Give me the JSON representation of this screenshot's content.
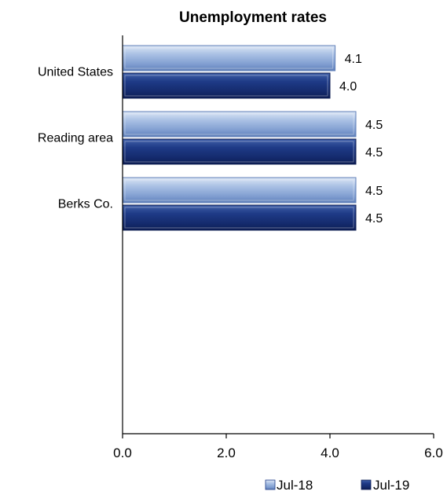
{
  "chart_data": {
    "type": "bar",
    "orientation": "horizontal",
    "title": "Unemployment rates",
    "categories": [
      "United States",
      "Reading area",
      "Berks Co."
    ],
    "series": [
      {
        "name": "Jul-18",
        "values": [
          4.1,
          4.5,
          4.5
        ],
        "value_labels": [
          "4.1",
          "4.5",
          "4.5"
        ],
        "color": "#8eaadb"
      },
      {
        "name": "Jul-19",
        "values": [
          4.0,
          4.5,
          4.5
        ],
        "value_labels": [
          "4.0",
          "4.5",
          "4.5"
        ],
        "color": "#1f3c88"
      }
    ],
    "xlim": [
      0,
      6
    ],
    "xticks": [
      "0.0",
      "2.0",
      "4.0",
      "6.0"
    ],
    "xlabel": "",
    "ylabel": "",
    "grid": false,
    "legend_position": "bottom-right"
  }
}
